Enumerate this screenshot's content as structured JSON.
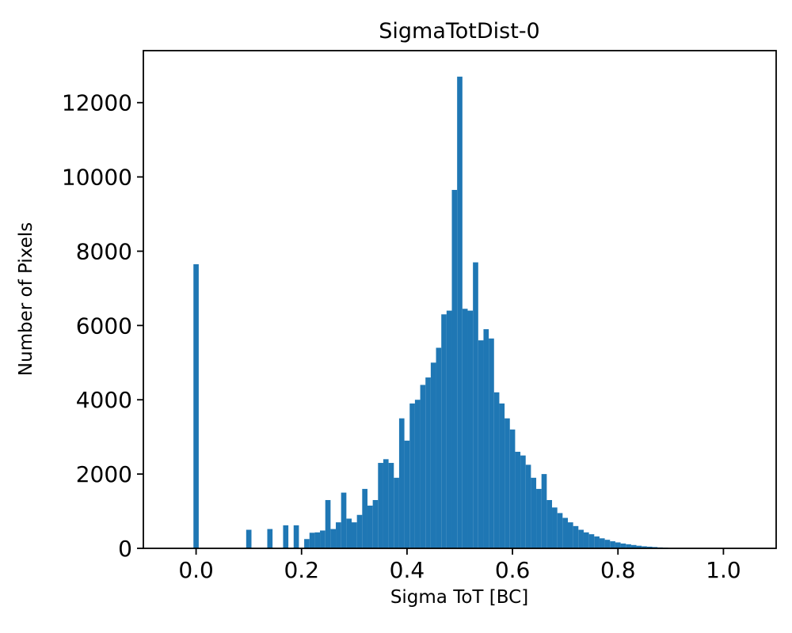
{
  "chart_data": {
    "type": "bar",
    "title": "SigmaTotDist-0",
    "xlabel": "Sigma ToT [BC]",
    "ylabel": "Number of Pixels",
    "xlim": [
      -0.1,
      1.1
    ],
    "ylim": [
      0,
      13400
    ],
    "grid": false,
    "legend": "none",
    "bar_color": "#1f77b4",
    "bin_width": 0.01,
    "xticks": [
      0.0,
      0.2,
      0.4,
      0.6,
      0.8,
      1.0
    ],
    "xtick_labels": [
      "0.0",
      "0.2",
      "0.4",
      "0.6",
      "0.8",
      "1.0"
    ],
    "yticks": [
      0,
      2000,
      4000,
      6000,
      8000,
      10000,
      12000
    ],
    "ytick_labels": [
      "0",
      "2000",
      "4000",
      "6000",
      "8000",
      "10000",
      "12000"
    ],
    "bins": [
      0.0,
      0.01,
      0.02,
      0.03,
      0.04,
      0.05,
      0.06,
      0.07,
      0.08,
      0.09,
      0.1,
      0.11,
      0.12,
      0.13,
      0.14,
      0.15,
      0.16,
      0.17,
      0.18,
      0.19,
      0.2,
      0.21,
      0.22,
      0.23,
      0.24,
      0.25,
      0.26,
      0.27,
      0.28,
      0.29,
      0.3,
      0.31,
      0.32,
      0.33,
      0.34,
      0.35,
      0.36,
      0.37,
      0.38,
      0.39,
      0.4,
      0.41,
      0.42,
      0.43,
      0.44,
      0.45,
      0.46,
      0.47,
      0.48,
      0.49,
      0.5,
      0.51,
      0.52,
      0.53,
      0.54,
      0.55,
      0.56,
      0.57,
      0.58,
      0.59,
      0.6,
      0.61,
      0.62,
      0.63,
      0.64,
      0.65,
      0.66,
      0.67,
      0.68,
      0.69,
      0.7,
      0.71,
      0.72,
      0.73,
      0.74,
      0.75,
      0.76,
      0.77,
      0.78,
      0.79,
      0.8,
      0.81,
      0.82,
      0.83,
      0.84,
      0.85,
      0.86,
      0.87,
      0.88,
      0.89,
      0.9
    ],
    "counts": [
      7650,
      0,
      0,
      0,
      0,
      0,
      0,
      0,
      0,
      0,
      500,
      0,
      0,
      0,
      520,
      0,
      0,
      620,
      0,
      620,
      0,
      250,
      420,
      430,
      480,
      1300,
      520,
      700,
      1500,
      800,
      700,
      900,
      1600,
      1150,
      1300,
      2300,
      2400,
      2300,
      1900,
      3500,
      2900,
      3900,
      4000,
      4400,
      4600,
      5000,
      5400,
      6300,
      6400,
      9650,
      12700,
      6450,
      6400,
      7700,
      5600,
      5900,
      5650,
      4200,
      3900,
      3500,
      3200,
      2600,
      2500,
      2250,
      1900,
      1600,
      2000,
      1300,
      1100,
      950,
      820,
      700,
      600,
      500,
      430,
      380,
      320,
      270,
      230,
      190,
      160,
      130,
      110,
      90,
      70,
      55,
      45,
      35,
      25,
      20,
      10
    ]
  }
}
